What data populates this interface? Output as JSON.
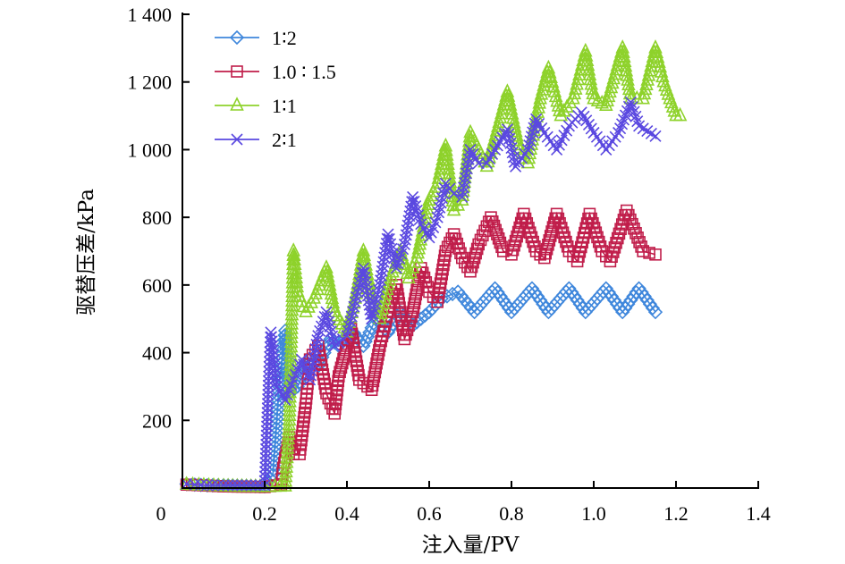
{
  "chart_data": {
    "type": "line",
    "title": "",
    "xlabel": "注入量/PV",
    "ylabel": "驱替压差/kPa",
    "xlim": [
      0,
      1.4
    ],
    "ylim": [
      0,
      1400
    ],
    "x_ticks": [
      0.2,
      0.4,
      0.6,
      0.8,
      1.0,
      1.2,
      1.4
    ],
    "x_tick_labels": [
      "0.2",
      "0.4",
      "0.6",
      "0.8",
      "1.0",
      "1.2",
      "1.4"
    ],
    "origin_label": "0",
    "y_ticks": [
      200,
      400,
      600,
      800,
      1000,
      1200,
      1400
    ],
    "y_tick_labels": [
      "200",
      "400",
      "600",
      "800",
      "1 000",
      "1 200",
      "1 400"
    ],
    "grid": false,
    "legend_position": "top-left",
    "series": [
      {
        "name": "1∶2",
        "color": "#3f87dc",
        "marker": "diamond",
        "points": [
          [
            0.01,
            12
          ],
          [
            0.03,
            10
          ],
          [
            0.06,
            8
          ],
          [
            0.1,
            8
          ],
          [
            0.2,
            5
          ],
          [
            0.22,
            40
          ],
          [
            0.235,
            300
          ],
          [
            0.25,
            465
          ],
          [
            0.26,
            280
          ],
          [
            0.28,
            300
          ],
          [
            0.31,
            380
          ],
          [
            0.33,
            360
          ],
          [
            0.36,
            440
          ],
          [
            0.38,
            420
          ],
          [
            0.41,
            470
          ],
          [
            0.44,
            420
          ],
          [
            0.47,
            500
          ],
          [
            0.5,
            460
          ],
          [
            0.53,
            520
          ],
          [
            0.56,
            480
          ],
          [
            0.6,
            520
          ],
          [
            0.63,
            560
          ],
          [
            0.67,
            580
          ],
          [
            0.71,
            520
          ],
          [
            0.76,
            590
          ],
          [
            0.8,
            520
          ],
          [
            0.85,
            590
          ],
          [
            0.89,
            520
          ],
          [
            0.94,
            590
          ],
          [
            0.98,
            520
          ],
          [
            1.03,
            590
          ],
          [
            1.07,
            520
          ],
          [
            1.11,
            590
          ],
          [
            1.15,
            520
          ]
        ]
      },
      {
        "name": "1.0 ∶ 1.5",
        "color": "#c01d4a",
        "marker": "square",
        "points": [
          [
            0.01,
            10
          ],
          [
            0.05,
            8
          ],
          [
            0.1,
            5
          ],
          [
            0.2,
            3
          ],
          [
            0.24,
            10
          ],
          [
            0.245,
            60
          ],
          [
            0.26,
            150
          ],
          [
            0.27,
            100
          ],
          [
            0.285,
            100
          ],
          [
            0.3,
            250
          ],
          [
            0.31,
            380
          ],
          [
            0.33,
            420
          ],
          [
            0.35,
            280
          ],
          [
            0.37,
            220
          ],
          [
            0.38,
            330
          ],
          [
            0.4,
            420
          ],
          [
            0.41,
            470
          ],
          [
            0.43,
            320
          ],
          [
            0.46,
            290
          ],
          [
            0.48,
            420
          ],
          [
            0.5,
            520
          ],
          [
            0.52,
            600
          ],
          [
            0.54,
            440
          ],
          [
            0.56,
            520
          ],
          [
            0.58,
            650
          ],
          [
            0.6,
            580
          ],
          [
            0.62,
            550
          ],
          [
            0.64,
            700
          ],
          [
            0.66,
            750
          ],
          [
            0.68,
            680
          ],
          [
            0.7,
            640
          ],
          [
            0.72,
            720
          ],
          [
            0.75,
            800
          ],
          [
            0.78,
            700
          ],
          [
            0.8,
            690
          ],
          [
            0.83,
            810
          ],
          [
            0.86,
            700
          ],
          [
            0.88,
            680
          ],
          [
            0.91,
            810
          ],
          [
            0.94,
            700
          ],
          [
            0.96,
            670
          ],
          [
            0.99,
            810
          ],
          [
            1.02,
            700
          ],
          [
            1.04,
            670
          ],
          [
            1.08,
            820
          ],
          [
            1.12,
            700
          ],
          [
            1.15,
            690
          ]
        ]
      },
      {
        "name": "1∶1",
        "color": "#8ed22b",
        "marker": "triangle",
        "points": [
          [
            0.01,
            10
          ],
          [
            0.04,
            8
          ],
          [
            0.1,
            5
          ],
          [
            0.2,
            3
          ],
          [
            0.25,
            5
          ],
          [
            0.26,
            200
          ],
          [
            0.27,
            700
          ],
          [
            0.28,
            580
          ],
          [
            0.3,
            520
          ],
          [
            0.32,
            560
          ],
          [
            0.35,
            650
          ],
          [
            0.37,
            520
          ],
          [
            0.4,
            460
          ],
          [
            0.42,
            560
          ],
          [
            0.44,
            700
          ],
          [
            0.46,
            560
          ],
          [
            0.48,
            500
          ],
          [
            0.5,
            600
          ],
          [
            0.53,
            700
          ],
          [
            0.55,
            620
          ],
          [
            0.57,
            680
          ],
          [
            0.6,
            850
          ],
          [
            0.62,
            900
          ],
          [
            0.64,
            1010
          ],
          [
            0.66,
            820
          ],
          [
            0.68,
            850
          ],
          [
            0.7,
            1050
          ],
          [
            0.72,
            1000
          ],
          [
            0.74,
            950
          ],
          [
            0.77,
            1080
          ],
          [
            0.79,
            1170
          ],
          [
            0.82,
            1000
          ],
          [
            0.84,
            960
          ],
          [
            0.87,
            1150
          ],
          [
            0.89,
            1240
          ],
          [
            0.92,
            1100
          ],
          [
            0.95,
            1150
          ],
          [
            0.98,
            1290
          ],
          [
            1.0,
            1150
          ],
          [
            1.03,
            1130
          ],
          [
            1.07,
            1300
          ],
          [
            1.09,
            1150
          ],
          [
            1.12,
            1150
          ],
          [
            1.15,
            1300
          ],
          [
            1.17,
            1200
          ],
          [
            1.2,
            1100
          ],
          [
            1.21,
            1100
          ]
        ]
      },
      {
        "name": "2∶1",
        "color": "#5a48e0",
        "marker": "x",
        "points": [
          [
            0.01,
            12
          ],
          [
            0.03,
            10
          ],
          [
            0.06,
            8
          ],
          [
            0.1,
            8
          ],
          [
            0.2,
            8
          ],
          [
            0.21,
            330
          ],
          [
            0.215,
            460
          ],
          [
            0.23,
            300
          ],
          [
            0.25,
            260
          ],
          [
            0.27,
            320
          ],
          [
            0.29,
            380
          ],
          [
            0.31,
            320
          ],
          [
            0.33,
            450
          ],
          [
            0.35,
            520
          ],
          [
            0.37,
            420
          ],
          [
            0.4,
            450
          ],
          [
            0.42,
            550
          ],
          [
            0.44,
            650
          ],
          [
            0.46,
            500
          ],
          [
            0.48,
            600
          ],
          [
            0.5,
            750
          ],
          [
            0.52,
            650
          ],
          [
            0.54,
            720
          ],
          [
            0.56,
            860
          ],
          [
            0.58,
            780
          ],
          [
            0.6,
            740
          ],
          [
            0.62,
            800
          ],
          [
            0.64,
            900
          ],
          [
            0.66,
            870
          ],
          [
            0.68,
            860
          ],
          [
            0.7,
            1000
          ],
          [
            0.72,
            960
          ],
          [
            0.74,
            960
          ],
          [
            0.76,
            1000
          ],
          [
            0.79,
            1060
          ],
          [
            0.81,
            950
          ],
          [
            0.84,
            1000
          ],
          [
            0.86,
            1090
          ],
          [
            0.88,
            1050
          ],
          [
            0.91,
            1000
          ],
          [
            0.94,
            1070
          ],
          [
            0.97,
            1110
          ],
          [
            1.0,
            1050
          ],
          [
            1.03,
            1000
          ],
          [
            1.06,
            1050
          ],
          [
            1.09,
            1140
          ],
          [
            1.11,
            1070
          ],
          [
            1.15,
            1040
          ]
        ]
      }
    ]
  }
}
